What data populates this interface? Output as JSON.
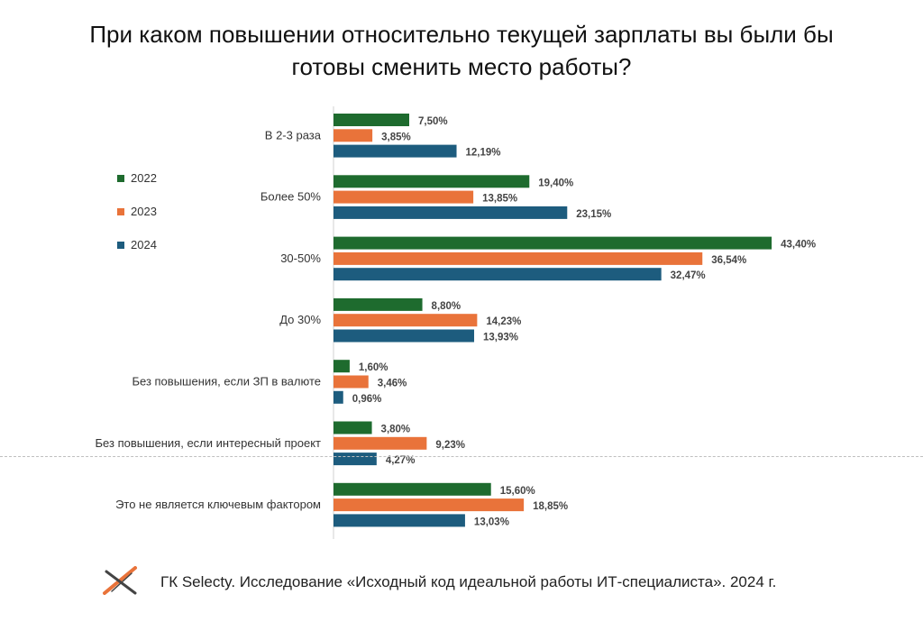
{
  "title_lines": [
    "При каком повышении относительно текущей зарплаты вы были бы",
    "готовы сменить место работы?"
  ],
  "footer": {
    "text": "ГК Selecty. Исследование «Исходный код идеальной работы ИТ-специалиста». 2024 г."
  },
  "chart_data": {
    "type": "bar",
    "orientation": "horizontal",
    "title": "При каком повышении относительно текущей зарплаты вы были бы готовы сменить место работы?",
    "categories": [
      "В 2-3 раза",
      "Более 50%",
      "30-50%",
      "До 30%",
      "Без повышения, если ЗП в валюте",
      "Без повышения, если интересный проект",
      "Это не является ключевым фактором"
    ],
    "series": [
      {
        "name": "2022",
        "color": "#1e6b2e",
        "values": [
          7.5,
          19.4,
          43.4,
          8.8,
          1.6,
          3.8,
          15.6
        ],
        "labels": [
          "7,50%",
          "19,40%",
          "43,40%",
          "8,80%",
          "1,60%",
          "3,80%",
          "15,60%"
        ]
      },
      {
        "name": "2023",
        "color": "#e9733a",
        "values": [
          3.85,
          13.85,
          36.54,
          14.23,
          3.46,
          9.23,
          18.85
        ],
        "labels": [
          "3,85%",
          "13,85%",
          "36,54%",
          "14,23%",
          "3,46%",
          "9,23%",
          "18,85%"
        ]
      },
      {
        "name": "2024",
        "color": "#1d5c7e",
        "values": [
          12.19,
          23.15,
          32.47,
          13.93,
          0.96,
          4.27,
          13.03
        ],
        "labels": [
          "12,19%",
          "23,15%",
          "32,47%",
          "13,93%",
          "0,96%",
          "4,27%",
          "13,03%"
        ]
      }
    ],
    "xlim": [
      0,
      44
    ],
    "legend_position": "left",
    "grid": false
  }
}
